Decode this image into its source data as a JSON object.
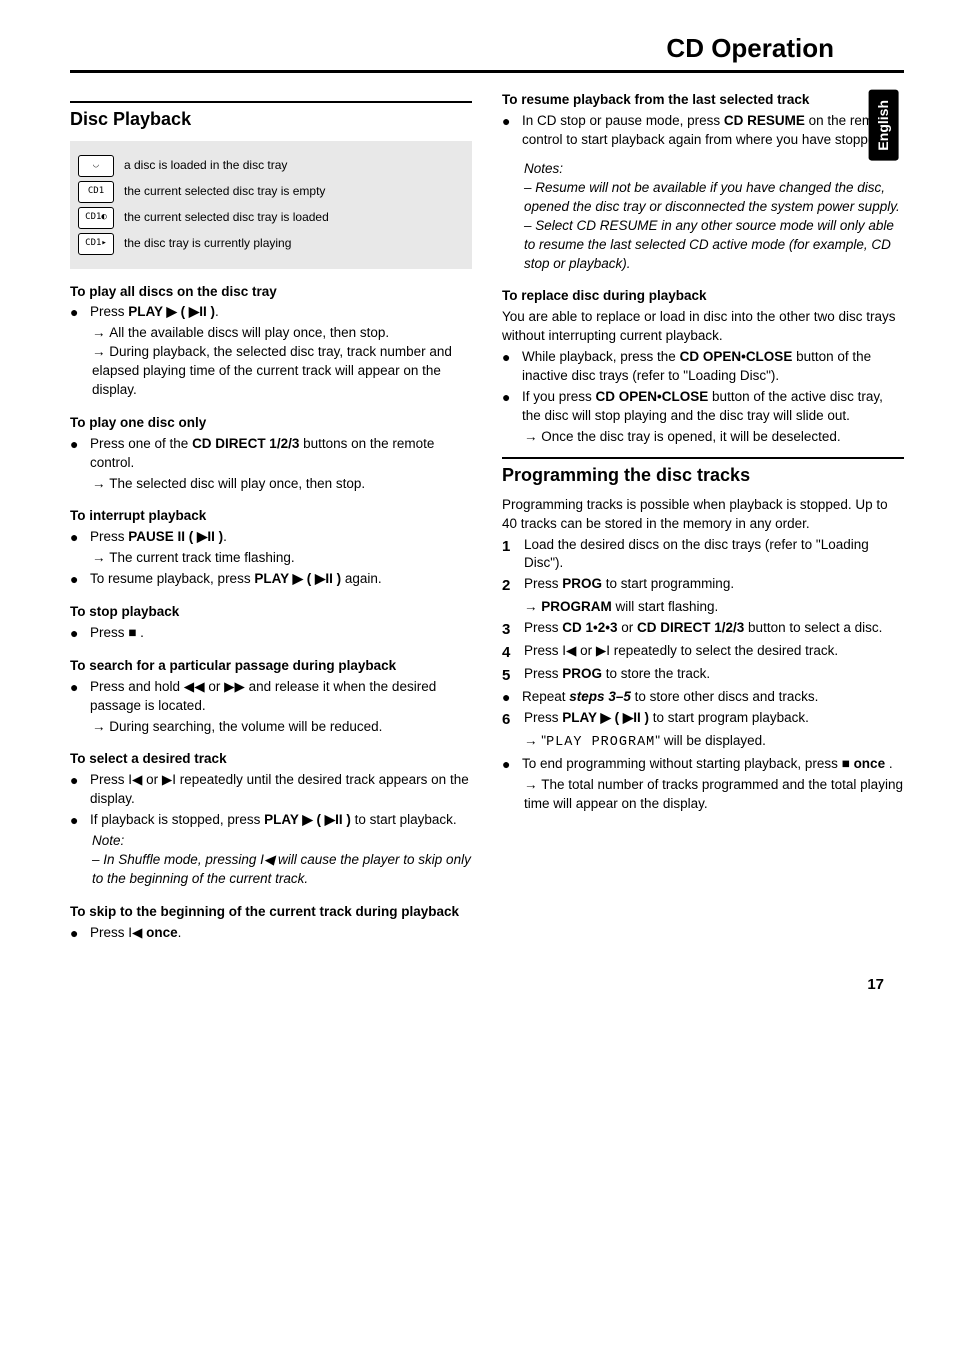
{
  "page_title": "CD Operation",
  "language_tab": "English",
  "page_number": "17",
  "left": {
    "section_title": "Disc Playback",
    "status_rows": [
      {
        "icon": "◡",
        "text": "a disc is loaded in the disc tray"
      },
      {
        "icon": "CD1",
        "text": "the current selected disc tray is empty"
      },
      {
        "icon": "CD1◐",
        "text": "the current selected disc tray is loaded"
      },
      {
        "icon": "CD1▸",
        "text": "the disc tray is currently playing"
      }
    ],
    "h_play_all": "To play all discs on the disc tray",
    "play_all_bullet": "Press <b>PLAY ▶ ( ▶II )</b>.",
    "play_all_a1": "All the available discs will play once, then stop.",
    "play_all_a2": "During playback, the selected disc tray, track number and elapsed playing time of the current track will appear on the display.",
    "h_play_one": "To play one disc only",
    "play_one_bullet": "Press one of the <b>CD DIRECT 1/2/3</b> buttons on the remote control.",
    "play_one_a1": "The selected disc will play once, then stop.",
    "h_interrupt": "To interrupt playback",
    "interrupt_b1": "Press <b>PAUSE II ( ▶II )</b>.",
    "interrupt_a1": "The current track time flashing.",
    "interrupt_b2": "To resume playback, press <b>PLAY ▶ ( ▶II )</b> again.",
    "h_stop": "To stop playback",
    "stop_b1": "Press ■ .",
    "h_search": "To search for a particular passage during playback",
    "search_b1": "Press and hold ◀◀ or ▶▶ and release it when the desired passage is located.",
    "search_a1": "During searching, the volume will be reduced.",
    "h_select": "To select a desired track",
    "select_b1": "Press I◀ or ▶I repeatedly until the desired track appears on the display.",
    "select_b2": "If playback is stopped, press <b>PLAY ▶ ( ▶II )</b> to start playback.",
    "select_note_h": "Note:",
    "select_note": "– In Shuffle mode, pressing I◀ will cause the player to skip only to the beginning of the current track.",
    "h_skip": "To skip to the beginning of the current track during playback",
    "skip_b1": "Press I◀ <b>once</b>."
  },
  "right": {
    "h_resume": "To resume playback from the last selected track",
    "resume_b1": "In CD stop or pause mode, press <b>CD RESUME</b> on the remote control to start playback again from where you have stopped.",
    "resume_notes_h": "Notes:",
    "resume_n1": "– Resume will not be available if you have changed the disc, opened the disc tray or disconnected the system power supply.",
    "resume_n2": "– Select CD RESUME in any other source mode will only able to resume the last selected CD active mode (for example, CD stop or playback).",
    "h_replace": "To replace disc during playback",
    "replace_p": "You are able to replace or load in disc into the other two disc trays without interrupting current playback.",
    "replace_b1": "While playback, press the <b>CD OPEN•CLOSE</b> button of the inactive disc trays (refer to \"Loading Disc\").",
    "replace_b2": "If you press <b>CD OPEN•CLOSE</b> button of the active disc tray, the disc will stop playing and the disc tray will slide out.",
    "replace_a1": "Once the disc tray is opened, it will be deselected.",
    "section_title_prog": "Programming the disc tracks",
    "prog_intro": "Programming tracks is possible when playback is stopped. Up to 40 tracks can be stored in the memory in any order.",
    "prog_1": "Load the desired discs on the disc trays (refer to \"Loading Disc\").",
    "prog_2": "Press <b>PROG</b> to start programming.",
    "prog_2a": "<b>PROGRAM</b> will start flashing.",
    "prog_3": "Press <b>CD 1•2•3</b> or <b>CD DIRECT 1/2/3</b> button to select a disc.",
    "prog_4": "Press I◀ or ▶I repeatedly to select the desired track.",
    "prog_5": "Press <b>PROG</b> to store the track.",
    "prog_repeat": "Repeat <b><i>steps 3–5</i></b> to store other discs and tracks.",
    "prog_6": "Press <b>PLAY ▶ ( ▶II )</b> to start program playback.",
    "prog_6a": "\"<span class='lcd'>PLAY PROGRAM</span>\" will be displayed.",
    "prog_end": "To end programming without starting playback, press ■ <b>once</b> .",
    "prog_end_a": "The total number of tracks programmed and the total playing time will appear on the display."
  }
}
